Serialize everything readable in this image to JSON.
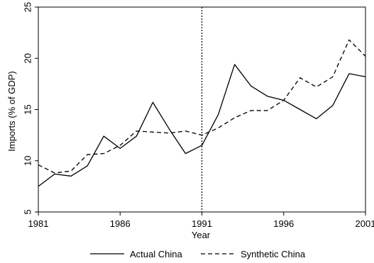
{
  "chart_data": {
    "type": "line",
    "xlabel": "Year",
    "ylabel": "Imports (% of GDP)",
    "x": [
      1981,
      1982,
      1983,
      1984,
      1985,
      1986,
      1987,
      1988,
      1989,
      1990,
      1991,
      1992,
      1993,
      1994,
      1995,
      1996,
      1997,
      1998,
      1999,
      2000,
      2001
    ],
    "series": [
      {
        "name": "Actual China",
        "style": "solid",
        "values": [
          7.5,
          8.7,
          8.5,
          9.5,
          12.4,
          11.2,
          12.4,
          15.7,
          13.1,
          10.7,
          11.5,
          14.5,
          19.4,
          17.3,
          16.3,
          15.9,
          15.0,
          14.1,
          15.4,
          18.5,
          18.2
        ]
      },
      {
        "name": "Synthetic China",
        "style": "dashed",
        "values": [
          9.6,
          8.8,
          9.0,
          10.6,
          10.7,
          11.5,
          12.9,
          12.8,
          12.7,
          12.9,
          12.5,
          13.2,
          14.2,
          14.9,
          14.9,
          15.9,
          18.1,
          17.2,
          18.2,
          21.8,
          20.2
        ]
      }
    ],
    "xticks": [
      "1981",
      "1986",
      "1991",
      "1996",
      "2001"
    ],
    "yticks": [
      "5",
      "10",
      "15",
      "20",
      "25"
    ],
    "xlim": [
      1981,
      2001
    ],
    "ylim": [
      5,
      25
    ],
    "vline": 1991,
    "grid": false,
    "legend_position": "bottom"
  },
  "colors": {
    "line": "#000000",
    "axis": "#000000",
    "background": "#ffffff"
  }
}
